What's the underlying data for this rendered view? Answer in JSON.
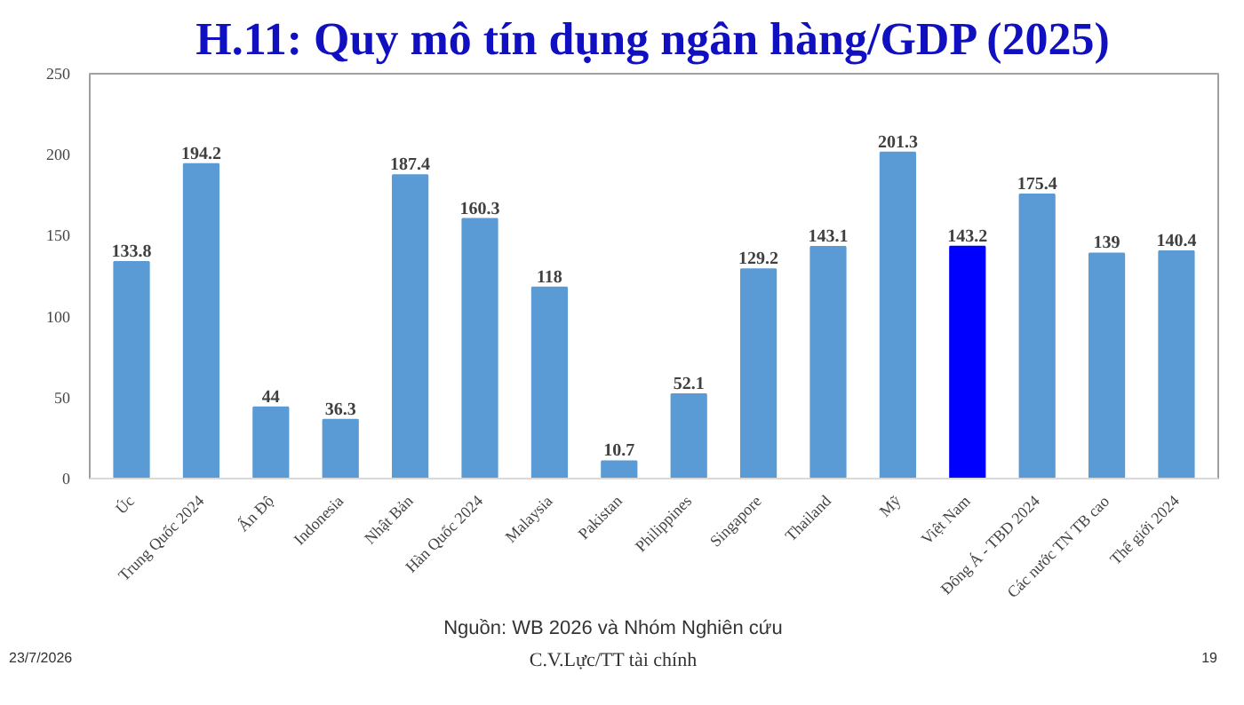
{
  "chart_data": {
    "type": "bar",
    "title": "H.11: Quy mô tín dụng ngân hàng/GDP (2025)",
    "categories": [
      "Úc",
      "Trung Quốc 2024",
      "Ấn Độ",
      "Indonesia",
      "Nhật Bản",
      "Hàn Quốc 2024",
      "Malaysia",
      "Pakistan",
      "Philippines",
      "Singapore",
      "Thailand",
      "Mỹ",
      "Việt Nam",
      "Đông Á - TBD 2024",
      "Các nước TN TB cao",
      "Thế giới 2024"
    ],
    "values": [
      133.8,
      194.2,
      44,
      36.3,
      187.4,
      160.3,
      118,
      10.7,
      52.1,
      129.2,
      143.1,
      201.3,
      143.2,
      175.4,
      139,
      140.4
    ],
    "colors": [
      "#5b9bd5",
      "#5b9bd5",
      "#5b9bd5",
      "#5b9bd5",
      "#5b9bd5",
      "#5b9bd5",
      "#5b9bd5",
      "#5b9bd5",
      "#5b9bd5",
      "#5b9bd5",
      "#5b9bd5",
      "#5b9bd5",
      "#0000ff",
      "#5b9bd5",
      "#5b9bd5",
      "#5b9bd5"
    ],
    "ylim": [
      0,
      250
    ],
    "yticks": [
      0,
      50,
      100,
      150,
      200,
      250
    ],
    "grid": false,
    "data_labels": true,
    "annotations": [
      "Nguồn: WB 2026 và Nhóm Nghiên cứu",
      "23/7/2026",
      "C.V.Lực/TT tài chính",
      "19"
    ]
  }
}
